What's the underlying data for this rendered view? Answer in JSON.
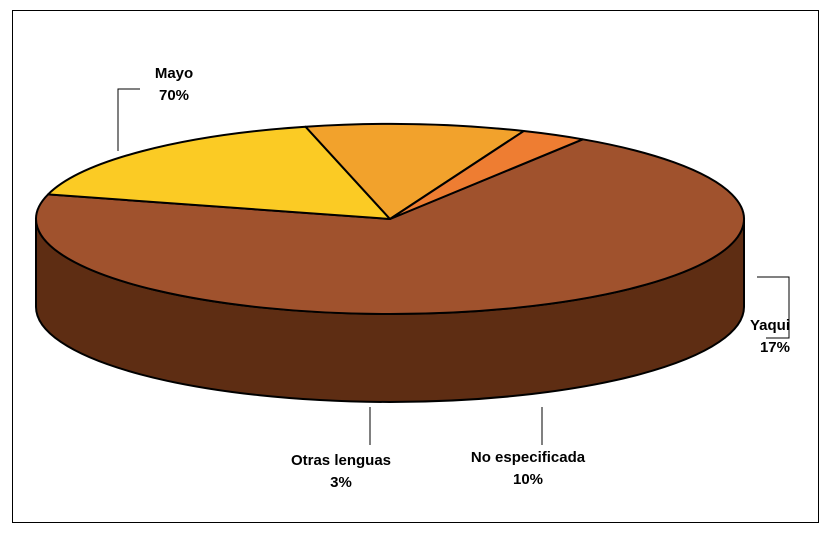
{
  "chart_data": {
    "type": "pie",
    "title": "",
    "three_d": true,
    "start_angle_deg": -57,
    "slices": [
      {
        "label": "Mayo",
        "pct_label": "70%",
        "value": 70,
        "top_color": "#A0522D",
        "side_color": "#5E2D13"
      },
      {
        "label": "Yaqui",
        "pct_label": "17%",
        "value": 17,
        "top_color": "#FBCB24",
        "side_color": "#8F7A30"
      },
      {
        "label": "No especificada",
        "pct_label": "10%",
        "value": 10,
        "top_color": "#F2A22C",
        "side_color": "#8B5A1F"
      },
      {
        "label": "Otras lenguas",
        "pct_label": "3%",
        "value": 3,
        "top_color": "#EE7D32",
        "side_color": "#8B4A1E"
      }
    ],
    "legend": "none",
    "data_labels": "outside with leader lines"
  }
}
